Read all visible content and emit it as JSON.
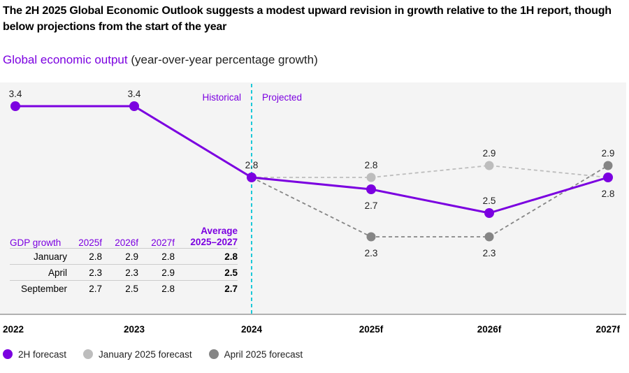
{
  "title": "The 2H 2025 Global Economic Outlook suggests a modest upward revision in growth relative to the 1H report, though below projections from the start of the year",
  "subtitle_highlight": "Global economic output",
  "subtitle_rest": " (year-over-year percentage growth)",
  "chart_data": {
    "type": "line",
    "categories": [
      "2022",
      "2023",
      "2024",
      "2025f",
      "2026f",
      "2027f"
    ],
    "annotations": {
      "historical": "Historical",
      "projected": "Projected"
    },
    "divider_after": "2024",
    "series": [
      {
        "name": "2H forecast",
        "color": "#7B00E0",
        "values": [
          3.4,
          3.4,
          2.8,
          2.7,
          2.5,
          2.8
        ],
        "labels": [
          "3.4",
          "3.4",
          "2.8",
          "2.7",
          "2.5",
          "2.8"
        ]
      },
      {
        "name": "January 2025 forecast",
        "color": "#BDBDBD",
        "values": [
          null,
          null,
          2.8,
          2.8,
          2.9,
          2.8
        ],
        "labels": [
          null,
          null,
          null,
          "2.8",
          "2.9",
          null
        ]
      },
      {
        "name": "April 2025 forecast",
        "color": "#858585",
        "values": [
          null,
          null,
          2.8,
          2.3,
          2.3,
          2.9
        ],
        "labels": [
          null,
          null,
          null,
          "2.3",
          "2.3",
          "2.9"
        ]
      }
    ],
    "grid": false,
    "legend": "bottom-left"
  },
  "table": {
    "headers": [
      "GDP growth",
      "2025f",
      "2026f",
      "2027f",
      "Average",
      "2025–2027"
    ],
    "rows": [
      [
        "January",
        "2.8",
        "2.9",
        "2.8",
        "2.8"
      ],
      [
        "April",
        "2.3",
        "2.3",
        "2.9",
        "2.5"
      ],
      [
        "September",
        "2.7",
        "2.5",
        "2.8",
        "2.7"
      ]
    ]
  }
}
